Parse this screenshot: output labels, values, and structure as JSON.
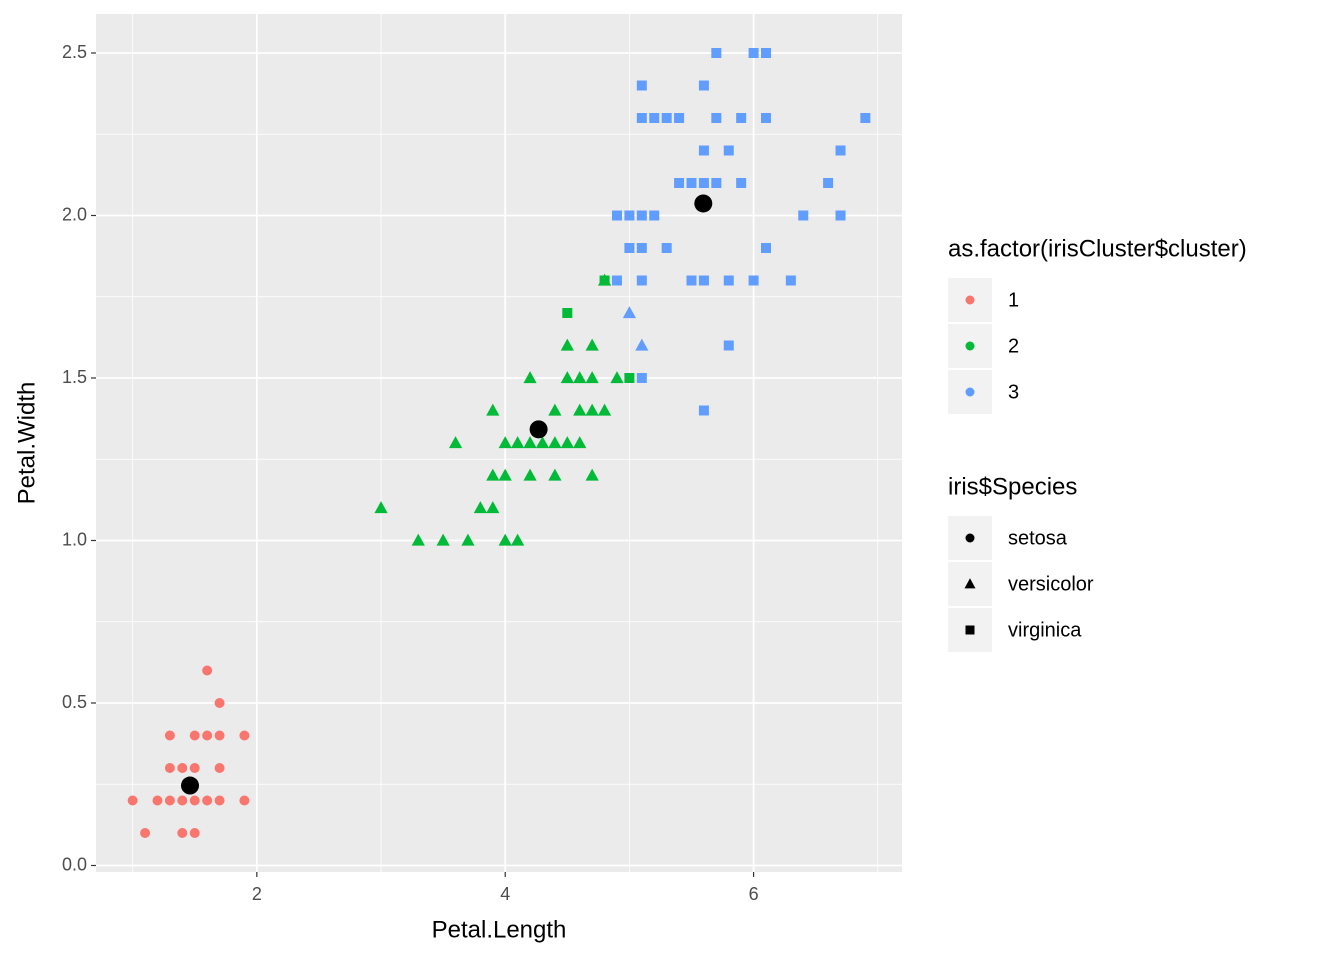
{
  "chart_data": {
    "type": "scatter",
    "x_label": "Petal.Length",
    "y_label": "Petal.Width",
    "xlim": [
      0.705,
      7.195
    ],
    "ylim": [
      -0.02,
      2.62
    ],
    "xticks": [
      2,
      4,
      6
    ],
    "yticks": [
      {
        "value": 0,
        "label": "0.0"
      },
      {
        "value": 0.5,
        "label": "0.5"
      },
      {
        "value": 1,
        "label": "1.0"
      },
      {
        "value": 1.5,
        "label": "1.5"
      },
      {
        "value": 2,
        "label": "2.0"
      },
      {
        "value": 2.5,
        "label": "2.5"
      }
    ],
    "grid": true,
    "legends": [
      {
        "title": "as.factor(irisCluster$cluster)",
        "entries": [
          {
            "label": "1",
            "color": "#f8766d",
            "shape": "circle"
          },
          {
            "label": "2",
            "color": "#00ba38",
            "shape": "circle"
          },
          {
            "label": "3",
            "color": "#619cff",
            "shape": "circle"
          }
        ]
      },
      {
        "title": "iris$Species",
        "entries": [
          {
            "label": "setosa",
            "color": "#000000",
            "shape": "circle"
          },
          {
            "label": "versicolor",
            "color": "#000000",
            "shape": "triangle"
          },
          {
            "label": "virginica",
            "color": "#000000",
            "shape": "square"
          }
        ]
      }
    ],
    "series": [
      {
        "color": "#f8766d",
        "shape": "circle",
        "size": 5,
        "x": [
          1.0,
          1.1,
          1.2,
          1.3,
          1.3,
          1.3,
          1.4,
          1.4,
          1.4,
          1.5,
          1.5,
          1.5,
          1.5,
          1.6,
          1.6,
          1.6,
          1.7,
          1.7,
          1.7,
          1.7,
          1.9,
          1.9
        ],
        "values": [
          0.2,
          0.1,
          0.2,
          0.2,
          0.3,
          0.4,
          0.1,
          0.2,
          0.3,
          0.1,
          0.2,
          0.3,
          0.4,
          0.2,
          0.4,
          0.6,
          0.2,
          0.3,
          0.4,
          0.5,
          0.2,
          0.4
        ]
      },
      {
        "color": "#00ba38",
        "shape": "triangle",
        "size": 6,
        "x": [
          3.0,
          3.8,
          3.9,
          3.3,
          3.5,
          3.7,
          4.0,
          4.1,
          3.6,
          4.0,
          4.1,
          4.2,
          4.3,
          4.4,
          4.5,
          4.6,
          3.9,
          4.0,
          4.2,
          4.4,
          4.7,
          3.9,
          4.4,
          4.6,
          4.7,
          4.8,
          4.2,
          4.5,
          4.6,
          4.7,
          4.9,
          4.5,
          4.7,
          4.8
        ],
        "values": [
          1.1,
          1.1,
          1.1,
          1.0,
          1.0,
          1.0,
          1.0,
          1.0,
          1.3,
          1.3,
          1.3,
          1.3,
          1.3,
          1.3,
          1.3,
          1.3,
          1.2,
          1.2,
          1.2,
          1.2,
          1.2,
          1.4,
          1.4,
          1.4,
          1.4,
          1.4,
          1.5,
          1.5,
          1.5,
          1.5,
          1.5,
          1.6,
          1.6,
          1.8
        ]
      },
      {
        "color": "#00ba38",
        "shape": "square",
        "size": 5,
        "x": [
          4.5,
          4.8,
          5.0
        ],
        "values": [
          1.7,
          1.8,
          1.5
        ]
      },
      {
        "color": "#619cff",
        "shape": "triangle",
        "size": 6,
        "x": [
          5.0,
          5.1
        ],
        "values": [
          1.7,
          1.6
        ]
      },
      {
        "color": "#619cff",
        "shape": "square",
        "size": 5,
        "x": [
          5.7,
          6.0,
          6.1,
          5.1,
          5.6,
          5.1,
          5.2,
          5.3,
          5.4,
          5.7,
          5.9,
          6.1,
          6.9,
          5.6,
          5.8,
          6.7,
          5.4,
          5.5,
          5.6,
          5.7,
          5.9,
          6.6,
          4.9,
          5.0,
          5.1,
          5.2,
          6.4,
          6.7,
          5.0,
          5.1,
          5.3,
          6.1,
          4.9,
          5.1,
          5.5,
          5.6,
          5.8,
          6.0,
          6.3,
          5.8,
          5.1,
          5.6
        ],
        "values": [
          2.5,
          2.5,
          2.5,
          2.4,
          2.4,
          2.3,
          2.3,
          2.3,
          2.3,
          2.3,
          2.3,
          2.3,
          2.3,
          2.2,
          2.2,
          2.2,
          2.1,
          2.1,
          2.1,
          2.1,
          2.1,
          2.1,
          2.0,
          2.0,
          2.0,
          2.0,
          2.0,
          2.0,
          1.9,
          1.9,
          1.9,
          1.9,
          1.8,
          1.8,
          1.8,
          1.8,
          1.8,
          1.8,
          1.8,
          1.6,
          1.5,
          1.4
        ]
      },
      {
        "color": "#000000",
        "shape": "circle",
        "size": 9,
        "x": [
          1.462,
          4.269,
          5.595
        ],
        "values": [
          0.246,
          1.342,
          2.037
        ]
      }
    ]
  }
}
